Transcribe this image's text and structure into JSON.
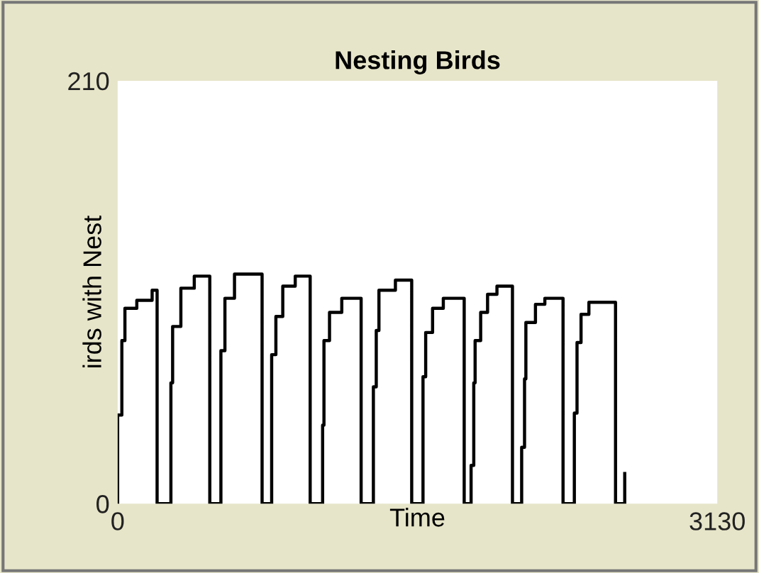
{
  "chart_data": {
    "type": "line",
    "title": "Nesting Birds",
    "xlabel": "Time",
    "ylabel": "irds with Nest",
    "xlim": [
      0,
      3130
    ],
    "ylim": [
      0,
      210
    ],
    "xticks": [
      0,
      3130
    ],
    "yticks": [
      0,
      210
    ],
    "grid": false,
    "legend": false,
    "series": [
      {
        "color": "#000000",
        "x": [
          0,
          0,
          22,
          22,
          38,
          38,
          100,
          100,
          180,
          180,
          206,
          206,
          278,
          278,
          287,
          287,
          330,
          330,
          400,
          400,
          481,
          481,
          539,
          539,
          560,
          560,
          610,
          610,
          682,
          754,
          754,
          804,
          804,
          826,
          826,
          862,
          862,
          927,
          927,
          1005,
          1005,
          1070,
          1070,
          1077,
          1077,
          1106,
          1106,
          1170,
          1170,
          1271,
          1271,
          1335,
          1335,
          1350,
          1350,
          1364,
          1364,
          1450,
          1450,
          1535,
          1535,
          1594,
          1594,
          1608,
          1608,
          1644,
          1644,
          1700,
          1700,
          1809,
          1809,
          1845,
          1845,
          1859,
          1859,
          1866,
          1866,
          1895,
          1895,
          1931,
          1931,
          1980,
          1980,
          2061,
          2061,
          2109,
          2109,
          2124,
          2124,
          2131,
          2131,
          2181,
          2181,
          2230,
          2230,
          2325,
          2325,
          2384,
          2384,
          2398,
          2398,
          2419,
          2419,
          2460,
          2460,
          2599,
          2599,
          2647,
          2647
        ],
        "values": [
          0,
          44,
          44,
          81,
          81,
          97,
          97,
          101,
          101,
          106,
          106,
          0,
          0,
          60,
          60,
          88,
          88,
          107,
          107,
          113,
          113,
          0,
          0,
          76,
          76,
          102,
          102,
          114,
          114,
          114,
          0,
          0,
          74,
          74,
          93,
          93,
          108,
          108,
          113,
          113,
          0,
          0,
          39,
          39,
          81,
          81,
          95,
          95,
          102,
          102,
          0,
          0,
          58,
          58,
          86,
          86,
          106,
          106,
          111,
          111,
          0,
          0,
          63,
          63,
          85,
          85,
          97,
          97,
          102,
          102,
          0,
          0,
          19,
          19,
          60,
          60,
          81,
          81,
          95,
          95,
          104,
          104,
          108,
          108,
          0,
          0,
          28,
          28,
          62,
          62,
          90,
          90,
          99,
          99,
          102,
          102,
          0,
          0,
          45,
          45,
          80,
          80,
          94,
          94,
          100,
          100,
          0,
          0,
          15
        ]
      }
    ]
  }
}
